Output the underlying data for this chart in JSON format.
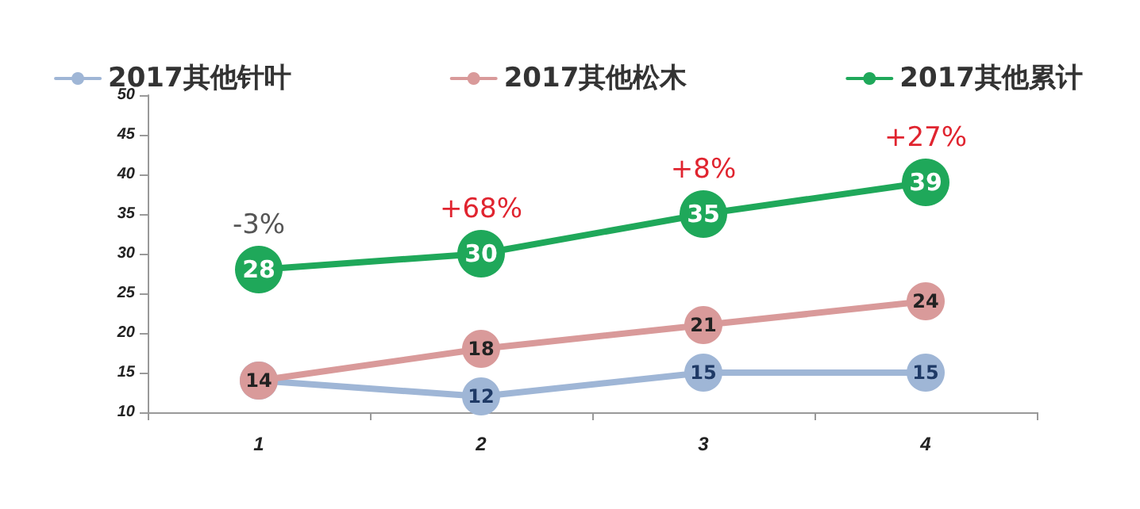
{
  "chart_data": {
    "type": "line",
    "categories": [
      "1",
      "2",
      "3",
      "4"
    ],
    "series": [
      {
        "name": "2017其他针叶",
        "color": "#9fb6d6",
        "values": [
          14,
          12,
          15,
          15
        ],
        "value_labels": [
          null,
          "12",
          "15",
          "15"
        ]
      },
      {
        "name": "2017其他松木",
        "color": "#d99a9a",
        "values": [
          14,
          18,
          21,
          24
        ],
        "value_labels": [
          "14",
          "18",
          "21",
          "24"
        ]
      },
      {
        "name": "2017其他累计",
        "color": "#1fa85a",
        "values": [
          28,
          30,
          35,
          39
        ],
        "value_labels": [
          "28",
          "30",
          "35",
          "39"
        ]
      }
    ],
    "ylim": [
      10,
      50
    ],
    "yticks": [
      10,
      15,
      20,
      25,
      30,
      35,
      40,
      45,
      50
    ],
    "grid": false,
    "legend": "top",
    "marker": "circle",
    "line_style": "solid",
    "annotations": [
      {
        "text": "-3%",
        "x": "1",
        "y": 28
      },
      {
        "text": "+68%",
        "x": "2",
        "y": 30
      },
      {
        "text": "+8%",
        "x": "3",
        "y": 35
      },
      {
        "text": "+27%",
        "x": "4",
        "y": 39
      }
    ]
  }
}
